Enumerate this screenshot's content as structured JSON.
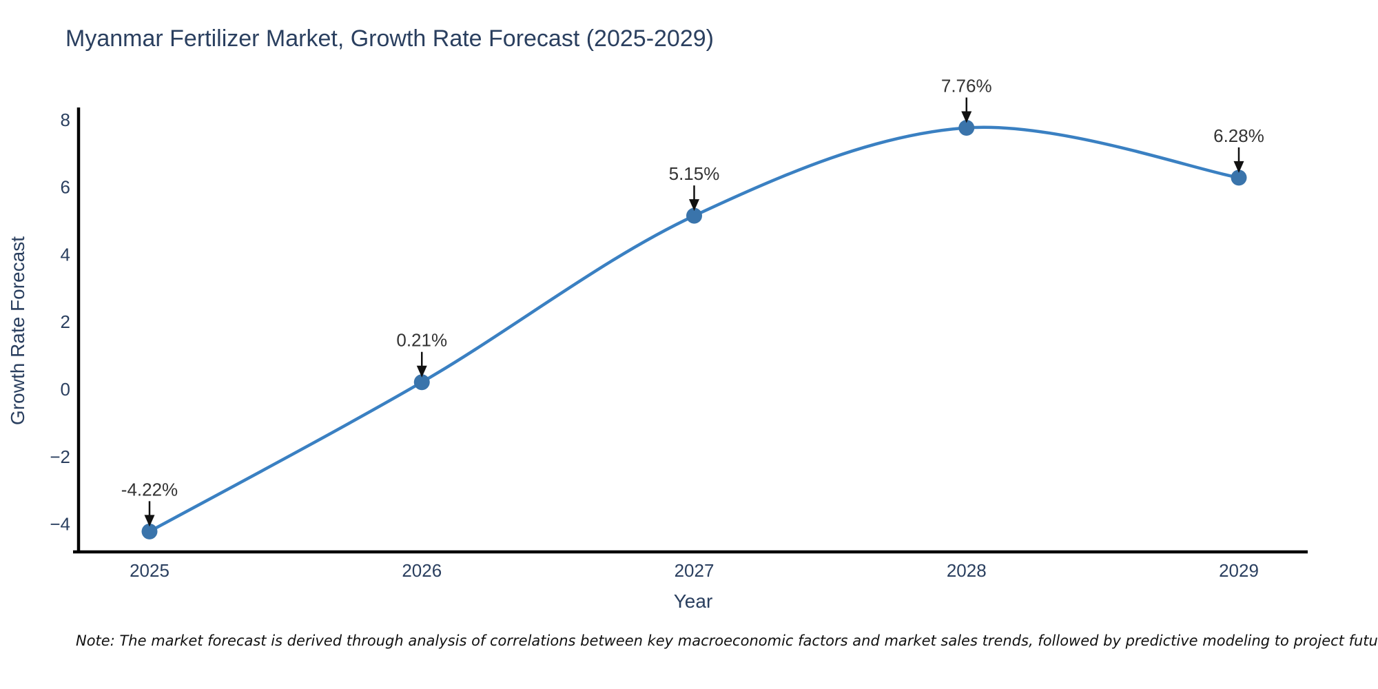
{
  "chart_data": {
    "type": "line",
    "title": "Myanmar Fertilizer Market, Growth Rate Forecast (2025-2029)",
    "xlabel": "Year",
    "ylabel": "Growth Rate Forecast",
    "categories": [
      "2025",
      "2026",
      "2027",
      "2028",
      "2029"
    ],
    "series": [
      {
        "name": "Growth Rate Forecast",
        "values": [
          -4.22,
          0.21,
          5.15,
          7.76,
          6.28
        ],
        "point_labels": [
          "-4.22%",
          "0.21%",
          "5.15%",
          "7.76%",
          "6.28%"
        ]
      }
    ],
    "ylim": [
      -4.8,
      8.4
    ],
    "yticks": [
      8,
      6,
      4,
      2,
      0,
      -2,
      -4
    ],
    "grid": false,
    "legend": "none",
    "line_shape": "spline",
    "marker_style": "circle",
    "annotation_arrows": true,
    "colors": {
      "line": "#3a80c2",
      "marker": "#3a74ab",
      "axis": "#000000",
      "tick_text": "#2a3f5f",
      "annotation_text": "#333333",
      "arrow": "#111111",
      "background": "#ffffff"
    }
  },
  "note": "Note: The market forecast is derived through analysis of correlations between key macroeconomic factors and market sales trends, followed by predictive modeling to project future sales"
}
